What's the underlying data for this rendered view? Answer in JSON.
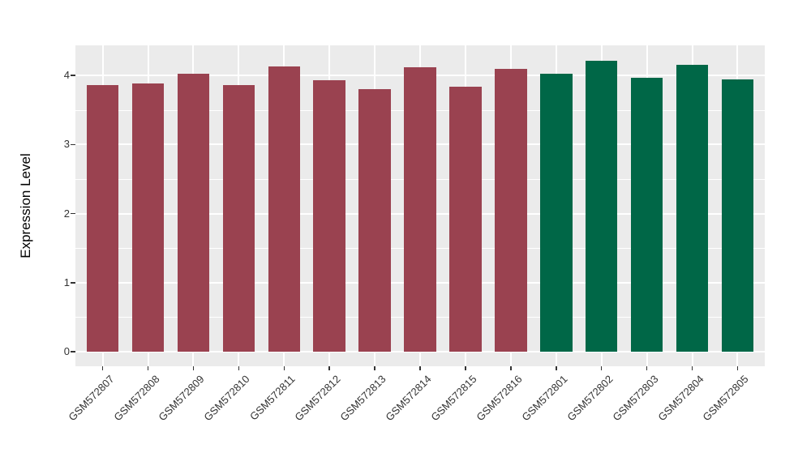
{
  "chart_data": {
    "type": "bar",
    "title": "",
    "xlabel": "",
    "ylabel": "Expression Level",
    "categories": [
      "GSM572807",
      "GSM572808",
      "GSM572809",
      "GSM572810",
      "GSM572811",
      "GSM572812",
      "GSM572813",
      "GSM572814",
      "GSM572815",
      "GSM572816",
      "GSM572801",
      "GSM572802",
      "GSM572803",
      "GSM572804",
      "GSM572805"
    ],
    "values": [
      3.86,
      3.88,
      4.02,
      3.86,
      4.13,
      3.93,
      3.8,
      4.12,
      3.84,
      4.09,
      4.02,
      4.21,
      3.96,
      4.15,
      3.94
    ],
    "bar_groups": [
      "maroon",
      "maroon",
      "maroon",
      "maroon",
      "maroon",
      "maroon",
      "maroon",
      "maroon",
      "maroon",
      "maroon",
      "green",
      "green",
      "green",
      "green",
      "green"
    ],
    "palette": {
      "maroon": "#9A4250",
      "green": "#006747"
    },
    "yticks": [
      "0",
      "1",
      "2",
      "3",
      "4"
    ],
    "ytick_values": [
      0,
      1,
      2,
      3,
      4
    ],
    "ylim": [
      0,
      4.42
    ],
    "legend": "none",
    "grid": "on",
    "panel_bg": "#EBEBEB",
    "grid_color": "#FFFFFF",
    "tick_text_color": "#333333",
    "axis_title_color": "#000000",
    "tick_mark_color": "#333333"
  }
}
